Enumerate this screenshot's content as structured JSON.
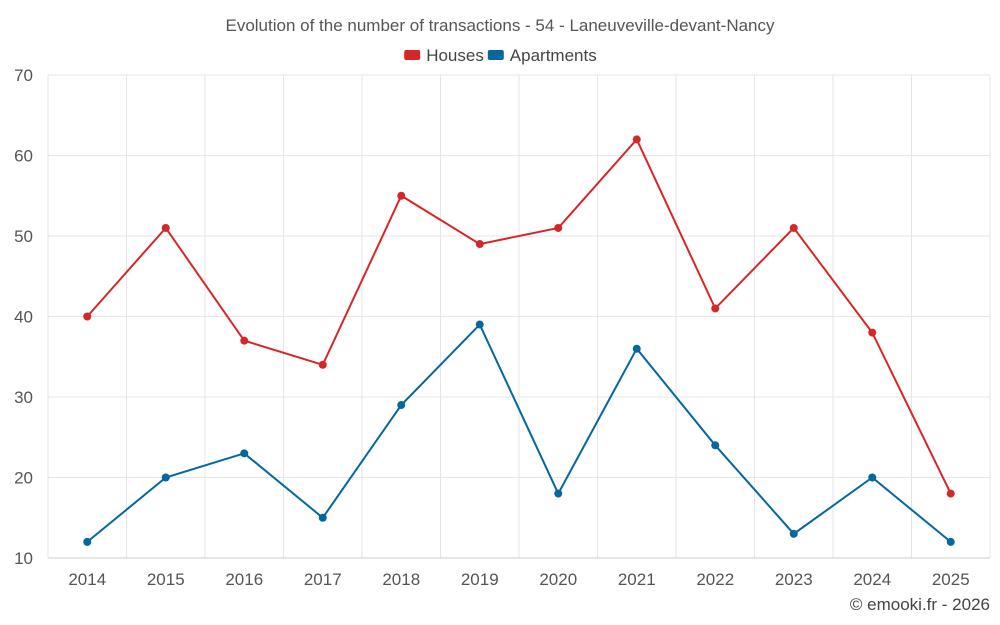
{
  "chart_data": {
    "type": "line",
    "title": "Evolution of the number of transactions - 54 - Laneuveville-devant-Nancy",
    "categories": [
      "2014",
      "2015",
      "2016",
      "2017",
      "2018",
      "2019",
      "2020",
      "2021",
      "2022",
      "2023",
      "2024",
      "2025"
    ],
    "series": [
      {
        "name": "Houses",
        "color": "#d62728",
        "values": [
          40,
          51,
          37,
          34,
          55,
          49,
          51,
          62,
          41,
          51,
          38,
          18
        ]
      },
      {
        "name": "Apartments",
        "color": "#04679e",
        "values": [
          12,
          20,
          23,
          15,
          29,
          39,
          18,
          36,
          24,
          13,
          20,
          12
        ]
      }
    ],
    "ylim": [
      10,
      70
    ],
    "yticks": [
      10,
      20,
      30,
      40,
      50,
      60,
      70
    ],
    "xlabel": "",
    "ylabel": "",
    "grid": true,
    "legend": "top-center"
  },
  "credit": "© emooki.fr - 2026"
}
